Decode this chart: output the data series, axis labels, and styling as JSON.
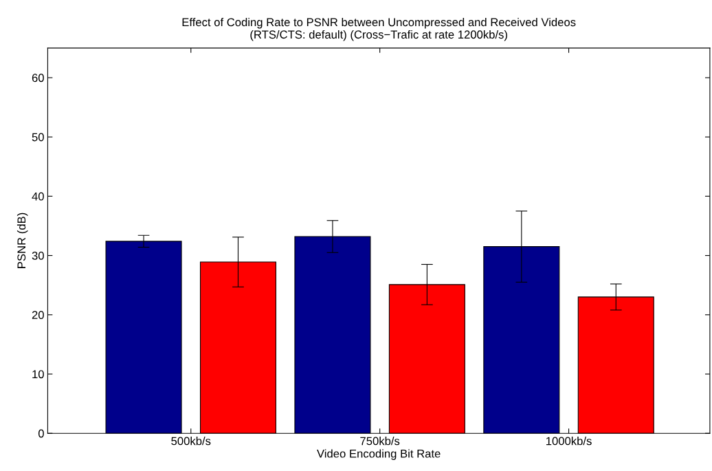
{
  "chart_data": {
    "type": "bar",
    "title": "Effect of Coding Rate to PSNR between Uncompressed and Received Videos\n(RTS/CTS: default) (Cross−Trafic at rate 1200kb/s)",
    "xlabel": "Video Encoding Bit Rate",
    "ylabel": "PSNR (dB)",
    "categories": [
      "500kb/s",
      "750kb/s",
      "1000kb/s"
    ],
    "series": [
      {
        "color": "#00008b",
        "values": [
          32.4,
          33.2,
          31.5
        ],
        "errors": [
          1.0,
          2.7,
          6.0
        ]
      },
      {
        "color": "#ff0000",
        "values": [
          28.9,
          25.1,
          23.0
        ],
        "errors": [
          4.2,
          3.4,
          2.2
        ]
      }
    ],
    "ylim": [
      0,
      65
    ],
    "yticks": [
      0,
      10,
      20,
      30,
      40,
      50,
      60
    ],
    "grid": false,
    "legend": false
  }
}
